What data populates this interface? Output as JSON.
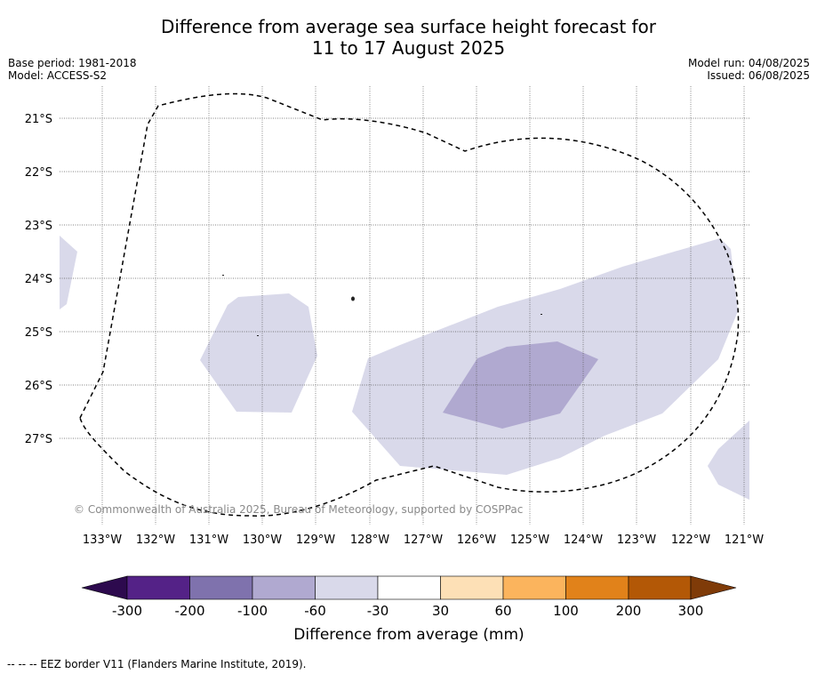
{
  "title_line1": "Difference from average sea surface height forecast for",
  "title_line2": "11 to 17 August 2025",
  "base_period": "Base period: 1981-2018",
  "model": "Model: ACCESS-S2",
  "model_run": "Model run: 04/08/2025",
  "issued": "Issued: 06/08/2025",
  "copyright": "© Commonwealth of Australia 2025, Bureau of Meteorology, supported by COSPPac",
  "lat_labels": [
    "21°S",
    "22°S",
    "23°S",
    "24°S",
    "25°S",
    "26°S",
    "27°S"
  ],
  "lon_labels": [
    "133°W",
    "132°W",
    "131°W",
    "130°W",
    "129°W",
    "128°W",
    "127°W",
    "126°W",
    "125°W",
    "124°W",
    "123°W",
    "122°W",
    "121°W"
  ],
  "colorbar": {
    "label": "Difference from average (mm)",
    "ticks": [
      "-300",
      "-200",
      "-100",
      "-60",
      "-30",
      "30",
      "60",
      "100",
      "200",
      "300"
    ],
    "colors": [
      "#2d0a4e",
      "#542287",
      "#7f72ad",
      "#b0a9d0",
      "#d9d9ea",
      "#ffffff",
      "#fde0b6",
      "#fbb45d",
      "#e1821a",
      "#b35806",
      "#7f3b08"
    ]
  },
  "footer": "-- -- -- EEZ border V11 (Flanders Marine Institute, 2019)."
}
